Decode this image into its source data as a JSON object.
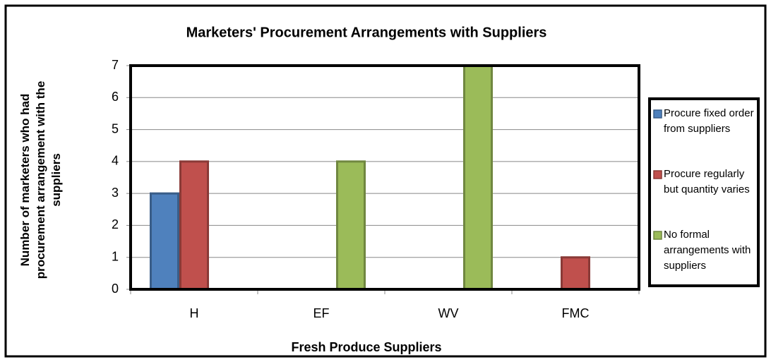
{
  "chart_data": {
    "type": "bar",
    "title": "Marketers' Procurement Arrangements with Suppliers",
    "x_label": "Fresh Produce Suppliers",
    "y_label": "Number of marketers who had procurement arrangement with the suppliers",
    "categories": [
      "H",
      "EF",
      "WV",
      "FMC"
    ],
    "series": [
      {
        "name": "Procure fixed order from suppliers",
        "color": "#4f81bd",
        "values": [
          3,
          0,
          0,
          0
        ]
      },
      {
        "name": "Procure regularly but quantity varies",
        "color": "#c0504d",
        "values": [
          4,
          0,
          0,
          1
        ]
      },
      {
        "name": "No formal arrangements with suppliers",
        "color": "#9bbb59",
        "values": [
          0,
          4,
          7,
          0
        ]
      }
    ],
    "ylim": [
      0,
      7
    ],
    "yticks": [
      0,
      1,
      2,
      3,
      4,
      5,
      6,
      7
    ],
    "grid": true,
    "legend": "right"
  }
}
